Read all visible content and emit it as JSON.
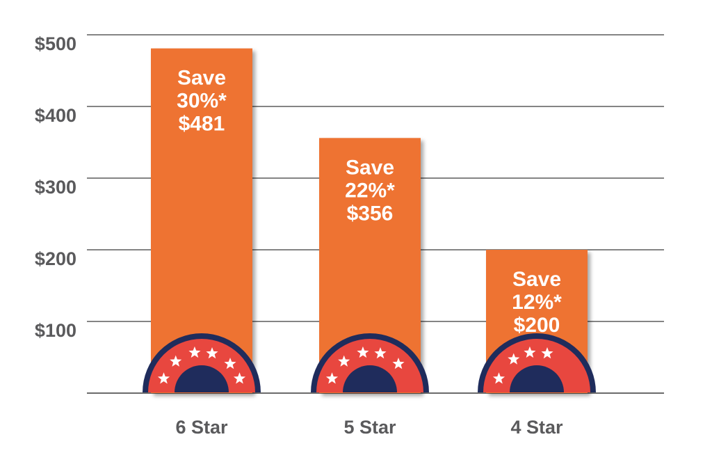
{
  "chart_data": {
    "type": "bar",
    "categories": [
      "6 Star",
      "5 Star",
      "4 Star"
    ],
    "values": [
      481,
      356,
      200
    ],
    "stars": [
      6,
      5,
      4
    ],
    "labels": [
      [
        "Save",
        "30%*",
        "$481"
      ],
      [
        "Save",
        "22%*",
        "$356"
      ],
      [
        "Save",
        "12%*",
        "$200"
      ]
    ],
    "yticks": [
      {
        "value": 100,
        "label": "$100"
      },
      {
        "value": 200,
        "label": "$200"
      },
      {
        "value": 300,
        "label": "$300"
      },
      {
        "value": 400,
        "label": "$400"
      },
      {
        "value": 500,
        "label": "$500"
      }
    ],
    "ylim": [
      0,
      500
    ],
    "grid": true,
    "colors": {
      "bar": "#ee7330",
      "gauge_outer": "#1f2c5c",
      "gauge_band": "#e8473f",
      "star": "#ffffff",
      "grid": "#3a3a3a",
      "text": "#5a5a5c"
    }
  }
}
